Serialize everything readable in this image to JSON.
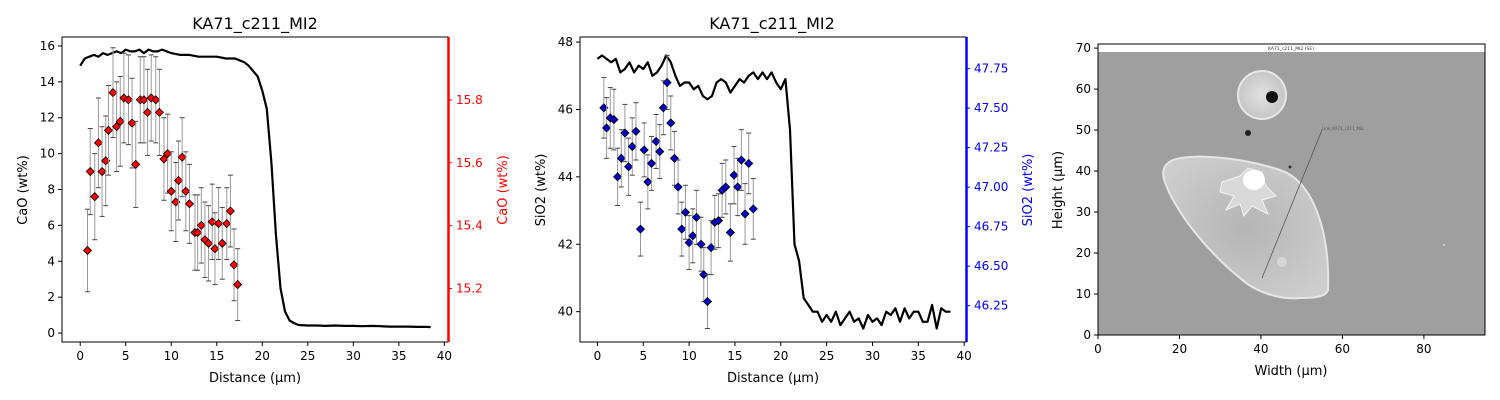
{
  "chart_data": [
    {
      "type": "line+scatter",
      "title": "KA71_c211_MI2",
      "xlabel": "Distance (µm)",
      "ylabel": "CaO (wt%)",
      "ylabel_right": "CaO (wt%)",
      "xlim": [
        -2,
        40.4
      ],
      "ylim": [
        -0.5,
        16.5
      ],
      "ylim_right": [
        15.03,
        16.0
      ],
      "xticks": [
        "0",
        "5",
        "10",
        "15",
        "20",
        "25",
        "30",
        "35",
        "40"
      ],
      "yticks": [
        "0",
        "2",
        "4",
        "6",
        "8",
        "10",
        "12",
        "14",
        "16"
      ],
      "yticks_right": [
        "15.2",
        "15.4",
        "15.6",
        "15.8"
      ],
      "right_axis_color": "#ff0000",
      "marker_color": "#ff0000",
      "profile": {
        "x": [
          0,
          0.5,
          1,
          1.5,
          2,
          2.5,
          3,
          3.5,
          4,
          4.5,
          5,
          5.5,
          6,
          6.5,
          7,
          7.5,
          8,
          8.5,
          9,
          9.5,
          10,
          11,
          12,
          13,
          14,
          15,
          16,
          17,
          17.5,
          18,
          18.5,
          19,
          19.5,
          20,
          20.5,
          21,
          21.5,
          22,
          22.5,
          23,
          23.5,
          24,
          25,
          26,
          27,
          28,
          29,
          30,
          31,
          32,
          33,
          34,
          35,
          36,
          37,
          38,
          38.5
        ],
        "y": [
          14.9,
          15.3,
          15.4,
          15.5,
          15.4,
          15.6,
          15.5,
          15.6,
          15.7,
          15.6,
          15.8,
          15.7,
          15.7,
          15.8,
          15.6,
          15.8,
          15.7,
          15.7,
          15.8,
          15.7,
          15.6,
          15.5,
          15.5,
          15.4,
          15.4,
          15.4,
          15.3,
          15.3,
          15.2,
          15.1,
          14.9,
          14.6,
          14.3,
          13.5,
          12.5,
          9.5,
          5.5,
          2.5,
          1.2,
          0.7,
          0.55,
          0.45,
          0.42,
          0.42,
          0.4,
          0.42,
          0.4,
          0.4,
          0.38,
          0.4,
          0.38,
          0.36,
          0.36,
          0.36,
          0.34,
          0.34,
          0.33
        ]
      },
      "points": {
        "x": [
          0.8,
          1.1,
          1.6,
          2.0,
          2.4,
          2.8,
          3.1,
          3.6,
          4.0,
          4.4,
          4.8,
          5.3,
          5.7,
          6.1,
          6.6,
          7.0,
          7.4,
          7.8,
          8.3,
          8.7,
          9.2,
          9.6,
          10.0,
          10.5,
          10.8,
          11.2,
          11.6,
          12.0,
          12.6,
          12.9,
          13.3,
          13.7,
          14.1,
          14.5,
          14.8,
          15.2,
          15.6,
          16.1,
          16.5,
          16.9,
          17.3
        ],
        "y": [
          4.6,
          9.0,
          7.6,
          10.6,
          9.0,
          9.6,
          11.3,
          13.4,
          11.5,
          11.8,
          13.1,
          13.0,
          11.7,
          9.4,
          13.0,
          13.0,
          12.3,
          13.1,
          13.0,
          12.3,
          9.7,
          10.0,
          7.9,
          7.3,
          8.5,
          9.8,
          7.9,
          7.2,
          5.6,
          5.6,
          6.0,
          5.2,
          5.0,
          6.2,
          4.7,
          6.1,
          5.0,
          6.1,
          6.8,
          3.8,
          2.7
        ],
        "yerr": [
          2.3,
          2.4,
          2.4,
          2.5,
          2.5,
          2.5,
          2.5,
          2.5,
          2.5,
          2.5,
          2.5,
          2.5,
          2.5,
          2.4,
          2.4,
          2.4,
          2.4,
          2.4,
          2.4,
          2.4,
          2.3,
          2.2,
          2.2,
          2.2,
          2.2,
          2.2,
          2.2,
          2.2,
          2.1,
          2.1,
          2.1,
          2.1,
          2.1,
          2.1,
          2.0,
          2.0,
          2.0,
          2.0,
          2.0,
          2.0,
          2.0
        ]
      }
    },
    {
      "type": "line+scatter",
      "title": "KA71_c211_MI2",
      "xlabel": "Distance (µm)",
      "ylabel": "SiO2 (wt%)",
      "ylabel_right": "SiO2 (wt%)",
      "xlim": [
        -1.9,
        40.2
      ],
      "ylim": [
        39.1,
        48.15
      ],
      "ylim_right": [
        46.02,
        47.95
      ],
      "xticks": [
        "0",
        "5",
        "10",
        "15",
        "20",
        "25",
        "30",
        "35",
        "40"
      ],
      "yticks": [
        "40",
        "42",
        "44",
        "46",
        "48"
      ],
      "yticks_right": [
        "46.25",
        "46.50",
        "46.75",
        "47.00",
        "47.25",
        "47.50",
        "47.75"
      ],
      "right_axis_color": "#0000ff",
      "marker_color": "#0000cc",
      "profile": {
        "x": [
          0,
          0.5,
          1,
          1.5,
          2,
          2.5,
          3,
          3.5,
          4,
          4.5,
          5,
          5.5,
          6,
          6.5,
          7,
          7.5,
          8,
          8.5,
          9,
          9.5,
          10,
          10.5,
          11,
          11.5,
          12,
          12.5,
          13,
          13.5,
          14,
          14.5,
          15,
          15.5,
          16,
          16.5,
          17,
          17.5,
          18,
          18.5,
          19,
          19.5,
          20,
          20.5,
          21,
          21.5,
          22,
          22.5,
          23,
          23.5,
          24,
          24.5,
          25,
          25.5,
          26,
          26.5,
          27,
          27.5,
          28,
          28.5,
          29,
          29.5,
          30,
          30.5,
          31,
          31.5,
          32,
          32.5,
          33,
          33.5,
          34,
          34.5,
          35,
          35.5,
          36,
          36.5,
          37,
          37.5,
          38,
          38.5
        ],
        "y": [
          47.5,
          47.6,
          47.5,
          47.4,
          47.5,
          47.1,
          47.2,
          47.4,
          47.1,
          47.3,
          47.2,
          47.4,
          47.0,
          47.1,
          47.3,
          47.6,
          47.4,
          47.0,
          46.7,
          46.8,
          46.8,
          46.6,
          46.7,
          46.4,
          46.3,
          46.4,
          46.8,
          46.9,
          46.8,
          46.5,
          46.7,
          46.9,
          46.8,
          47.0,
          47.1,
          46.9,
          47.1,
          46.9,
          47.1,
          46.8,
          46.6,
          46.9,
          45.4,
          42.0,
          41.5,
          40.4,
          40.2,
          40.0,
          40.0,
          39.7,
          39.9,
          39.7,
          40.0,
          39.6,
          39.8,
          40.0,
          39.7,
          39.8,
          39.5,
          39.9,
          39.7,
          39.8,
          39.6,
          40.0,
          39.9,
          40.1,
          39.7,
          40.1,
          39.8,
          40.0,
          40.0,
          39.7,
          39.7,
          40.2,
          39.5,
          40.1,
          40.0,
          40.0
        ]
      },
      "points": {
        "x": [
          0.7,
          1.0,
          1.4,
          1.8,
          2.2,
          2.6,
          3.0,
          3.4,
          3.8,
          4.2,
          4.7,
          5.1,
          5.5,
          5.9,
          6.4,
          6.8,
          7.2,
          7.6,
          8.0,
          8.4,
          8.8,
          9.2,
          9.6,
          10.0,
          10.4,
          10.8,
          11.3,
          11.6,
          12.0,
          12.4,
          12.8,
          13.2,
          13.6,
          14.0,
          14.5,
          14.9,
          15.3,
          15.7,
          16.1,
          16.5,
          17.0
        ],
        "y": [
          46.05,
          45.45,
          45.75,
          45.7,
          44.0,
          44.55,
          45.3,
          44.3,
          44.9,
          45.35,
          42.45,
          44.8,
          43.85,
          44.4,
          45.05,
          44.75,
          46.05,
          46.8,
          45.6,
          44.55,
          43.7,
          42.45,
          42.95,
          42.05,
          42.25,
          42.8,
          42.0,
          41.1,
          40.3,
          41.9,
          42.65,
          42.7,
          43.6,
          43.7,
          42.35,
          44.05,
          43.7,
          44.5,
          42.9,
          44.4,
          43.05
        ],
        "yerr": [
          0.9,
          0.9,
          0.9,
          0.9,
          0.85,
          0.85,
          0.85,
          0.85,
          0.85,
          0.85,
          0.8,
          0.8,
          0.8,
          0.8,
          0.8,
          0.8,
          0.8,
          0.8,
          0.8,
          0.8,
          0.8,
          0.8,
          0.8,
          0.8,
          0.8,
          0.8,
          0.8,
          0.8,
          0.8,
          0.8,
          0.8,
          0.8,
          0.8,
          0.8,
          0.85,
          0.85,
          0.85,
          0.9,
          0.9,
          0.9,
          0.9
        ]
      }
    },
    {
      "type": "image",
      "xlabel": "Width (µm)",
      "ylabel": "Height (µm)",
      "xlim": [
        0,
        95
      ],
      "ylim": [
        0,
        71
      ],
      "xticks": [
        "0",
        "20",
        "40",
        "60",
        "80"
      ],
      "yticks": [
        "0",
        "10",
        "20",
        "30",
        "40",
        "50",
        "60",
        "70"
      ],
      "image_title": "KA71_c211_MI2 (SE)",
      "image_annotation": "Line_KA71_c211_MI2",
      "image_extent_top": 69.0
    }
  ]
}
